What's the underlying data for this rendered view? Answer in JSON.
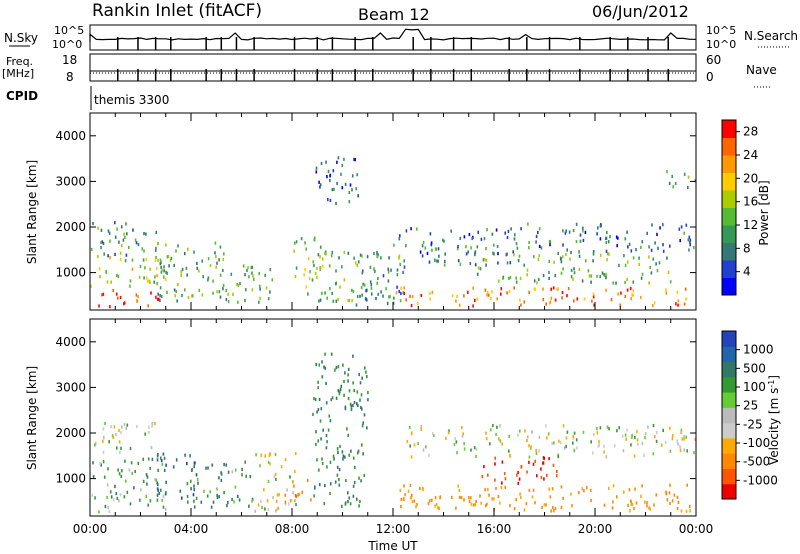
{
  "header": {
    "station": "Rankin Inlet (fitACF)",
    "beam": "Beam 12",
    "date": "06/Jun/2012"
  },
  "aux_panels": {
    "nsky_label": "N.Sky",
    "nsearch_label": "N.Search",
    "nsky_ticks": [
      "10^5",
      "10^0"
    ],
    "freq_label": "Freq.",
    "freq_unit": "[MHz]",
    "freq_ticks": [
      "18",
      "8"
    ],
    "nave_label": "Nave",
    "nave_ticks": [
      "60",
      "0"
    ],
    "cpid_label": "CPID",
    "cpid_value": "themis 3300"
  },
  "x_axis": {
    "label": "Time UT",
    "tick_labels": [
      "00:00",
      "04:00",
      "08:00",
      "12:00",
      "16:00",
      "20:00",
      "00:00"
    ],
    "tick_hours": [
      0,
      4,
      8,
      12,
      16,
      20,
      24
    ],
    "range_hours": [
      0,
      24
    ]
  },
  "colors": {
    "power_scale": [
      "#0000ff",
      "#2040d0",
      "#337777",
      "#339955",
      "#55bb33",
      "#aacc00",
      "#ffcc00",
      "#ff9900",
      "#ff6600",
      "#ff0000"
    ],
    "velocity_scale": [
      "#2244bb",
      "#2266aa",
      "#337766",
      "#339933",
      "#66cc33",
      "#bbbbbb",
      "#cccccc",
      "#ffaa00",
      "#ff8800",
      "#ff5500",
      "#ee0000"
    ],
    "ground_scatter": "#aaaaaa"
  },
  "chart_data": [
    {
      "type": "heatmap",
      "panel": "power",
      "ylabel": "Slant Range [km]",
      "ylim": [
        180,
        4500
      ],
      "yticks": [
        1000,
        2000,
        3000,
        4000
      ],
      "xlim": [
        0,
        24
      ],
      "colorbar": {
        "label": "Power [dB]",
        "ticks": [
          "4",
          "8",
          "12",
          "16",
          "20",
          "24",
          "28"
        ],
        "range": [
          0,
          30
        ]
      },
      "scatter_regions": [
        {
          "t": [
            0.2,
            2.8
          ],
          "r": [
            250,
            650
          ],
          "level": 28
        },
        {
          "t": [
            0.0,
            3.2
          ],
          "r": [
            700,
            1400
          ],
          "level": 16
        },
        {
          "t": [
            0.0,
            2.6
          ],
          "r": [
            1400,
            2200
          ],
          "level": 10
        },
        {
          "t": [
            2.5,
            5.5
          ],
          "r": [
            400,
            1700
          ],
          "level": 12
        },
        {
          "t": [
            5.0,
            7.2
          ],
          "r": [
            300,
            1200
          ],
          "level": 12
        },
        {
          "t": [
            8.0,
            9.2
          ],
          "r": [
            400,
            1800
          ],
          "level": 14
        },
        {
          "t": [
            8.8,
            10.6
          ],
          "r": [
            2500,
            3600
          ],
          "level": 6
        },
        {
          "t": [
            9.0,
            11.5
          ],
          "r": [
            400,
            1500
          ],
          "level": 12
        },
        {
          "t": [
            10.5,
            12.5
          ],
          "r": [
            300,
            1500
          ],
          "level": 10
        },
        {
          "t": [
            12.0,
            17.0
          ],
          "r": [
            1200,
            2000
          ],
          "level": 8
        },
        {
          "t": [
            12.0,
            24.0
          ],
          "r": [
            300,
            700
          ],
          "level": 24
        },
        {
          "t": [
            15.0,
            23.0
          ],
          "r": [
            800,
            1500
          ],
          "level": 12
        },
        {
          "t": [
            17.0,
            24.0
          ],
          "r": [
            1500,
            2100
          ],
          "level": 8
        },
        {
          "t": [
            22.8,
            24.0
          ],
          "r": [
            2900,
            3300
          ],
          "level": 10
        }
      ]
    },
    {
      "type": "heatmap",
      "panel": "velocity",
      "ylabel": "Slant Range [km]",
      "ylim": [
        180,
        4500
      ],
      "yticks": [
        1000,
        2000,
        3000,
        4000
      ],
      "xlim": [
        0,
        24
      ],
      "colorbar": {
        "label": "Velocity [m s^-1]",
        "ticks": [
          "1000",
          "500",
          "100",
          "25",
          "-25",
          "-100",
          "-500",
          "-1000"
        ],
        "range": [
          -1000,
          1000
        ]
      },
      "scatter_regions": [
        {
          "t": [
            0.0,
            2.6
          ],
          "r": [
            1600,
            2300
          ],
          "level": 0
        },
        {
          "t": [
            0.0,
            3.0
          ],
          "r": [
            300,
            1500
          ],
          "level": 150
        },
        {
          "t": [
            2.6,
            4.2
          ],
          "r": [
            600,
            1600
          ],
          "level": 600
        },
        {
          "t": [
            3.8,
            6.5
          ],
          "r": [
            400,
            1400
          ],
          "level": 200
        },
        {
          "t": [
            6.5,
            8.2
          ],
          "r": [
            300,
            1600
          ],
          "level": -50
        },
        {
          "t": [
            7.6,
            8.8
          ],
          "r": [
            400,
            1000
          ],
          "level": -400
        },
        {
          "t": [
            8.8,
            11.0
          ],
          "r": [
            400,
            3800
          ],
          "level": 300
        },
        {
          "t": [
            12.0,
            24.0
          ],
          "r": [
            300,
            900
          ],
          "level": -300
        },
        {
          "t": [
            12.5,
            24.0
          ],
          "r": [
            1500,
            2200
          ],
          "level": 0
        },
        {
          "t": [
            15.5,
            18.5
          ],
          "r": [
            900,
            1500
          ],
          "level": -700
        }
      ]
    }
  ]
}
